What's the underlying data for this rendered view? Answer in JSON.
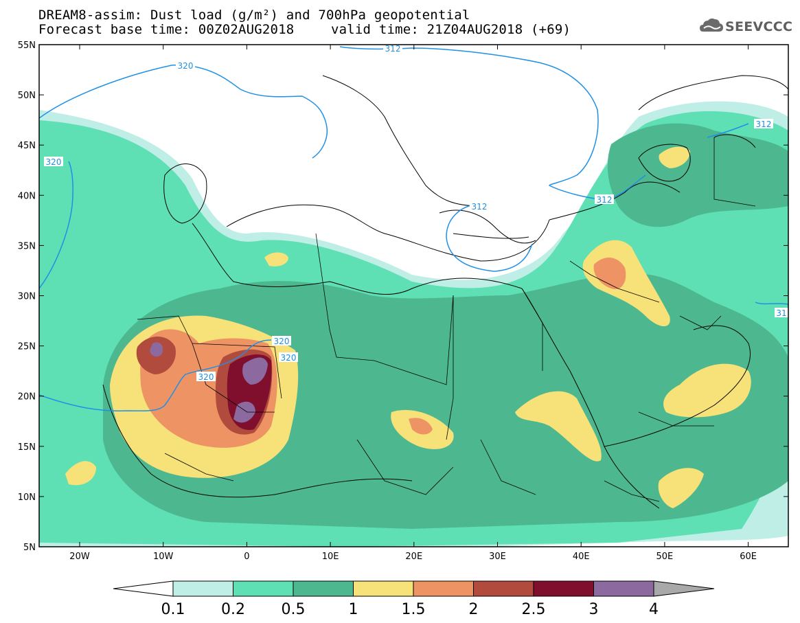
{
  "title": {
    "line1": "DREAM8-assim: Dust load (g/m²) and 700hPa geopotential",
    "line2_left": "Forecast base time: 00Z02AUG2018",
    "line2_right": "valid time: 21Z04AUG2018 (+69)"
  },
  "logo": {
    "text": "SEEVCCC",
    "icon": "cloud-icon"
  },
  "map": {
    "lat_labels": [
      "55N",
      "50N",
      "45N",
      "40N",
      "35N",
      "30N",
      "25N",
      "20N",
      "15N",
      "10N",
      "5N"
    ],
    "lon_labels": [
      "20W",
      "10W",
      "0",
      "10E",
      "20E",
      "30E",
      "40E",
      "50E",
      "60E"
    ],
    "contours": {
      "labels": [
        "320",
        "320",
        "320",
        "320",
        "320",
        "312",
        "312",
        "312",
        "312",
        "31"
      ],
      "line_color": "#1e90e6"
    }
  },
  "colorbar": {
    "levels": [
      "0.1",
      "0.2",
      "0.5",
      "1",
      "1.5",
      "2",
      "2.5",
      "3",
      "4"
    ],
    "colors": [
      "#ffffff",
      "#bfeee6",
      "#5ee0b4",
      "#4db890",
      "#f7e27a",
      "#ee9364",
      "#b04b3e",
      "#7f0f2d",
      "#8c6aa0",
      "#a9a9a9"
    ]
  }
}
